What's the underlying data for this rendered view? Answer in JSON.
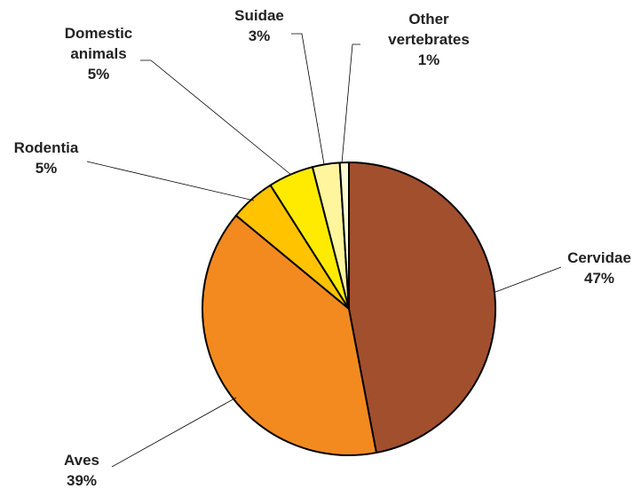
{
  "chart_data": {
    "type": "pie",
    "title": "",
    "slices": [
      {
        "label": "Cervidae",
        "value": 47,
        "percent_label": "47%",
        "color": "#A24F2E"
      },
      {
        "label": "Aves",
        "value": 39,
        "percent_label": "39%",
        "color": "#F28A20"
      },
      {
        "label": "Rodentia",
        "value": 5,
        "percent_label": "5%",
        "color": "#FFC300"
      },
      {
        "label": "Domestic animals",
        "value": 5,
        "percent_label": "5%",
        "color": "#FFEB00"
      },
      {
        "label": "Suidae",
        "value": 3,
        "percent_label": "3%",
        "color": "#FFF59C"
      },
      {
        "label": "Other vertebrates",
        "value": 1,
        "percent_label": "1%",
        "color": "#FFFBD2"
      }
    ],
    "label_lines": {
      "Cervidae": [
        "Cervidae",
        "47%"
      ],
      "Aves": [
        "Aves",
        "39%"
      ],
      "Rodentia": [
        "Rodentia",
        "5%"
      ],
      "Domestic animals": [
        "Domestic",
        "animals",
        "5%"
      ],
      "Suidae": [
        "Suidae",
        "3%"
      ],
      "Other vertebrates": [
        "Other",
        "vertebrates",
        "1%"
      ]
    },
    "start_angle": "12 o'clock",
    "direction": "clockwise",
    "legend": "none"
  }
}
